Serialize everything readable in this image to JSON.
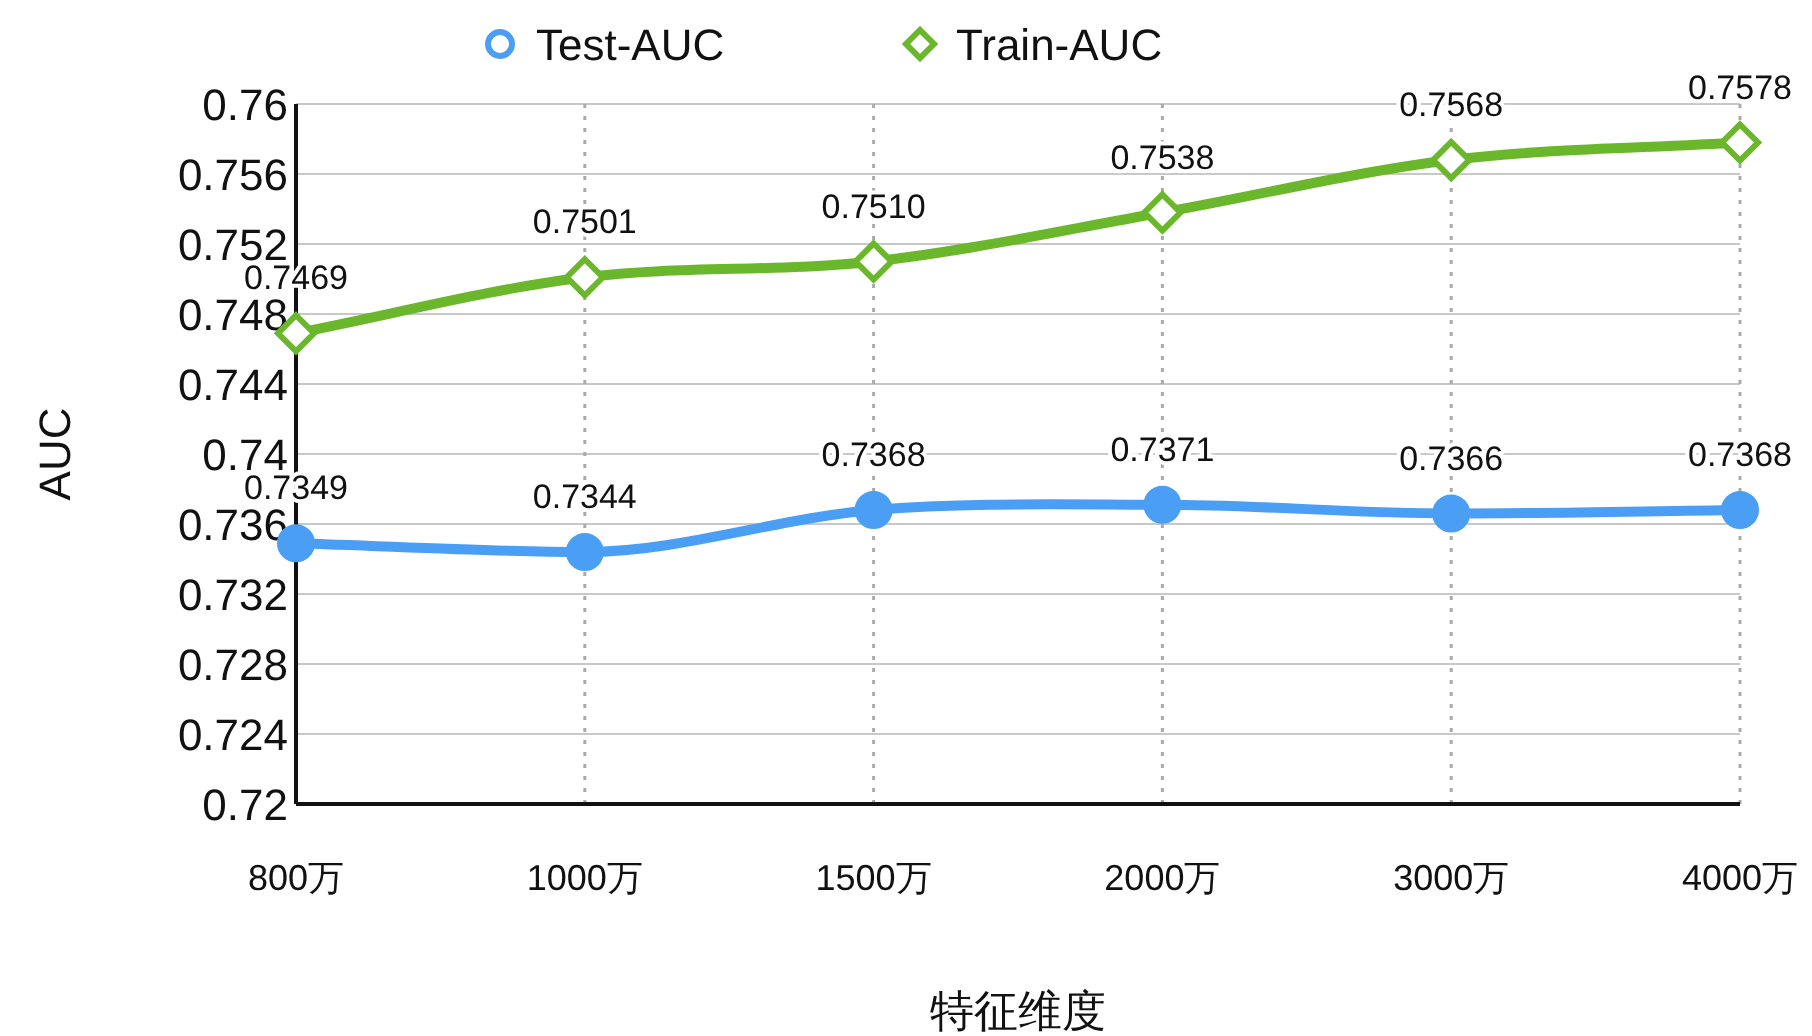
{
  "chart_data": {
    "type": "line",
    "xlabel": "特征维度",
    "ylabel": "AUC",
    "categories": [
      "800万",
      "1000万",
      "1500万",
      "2000万",
      "3000万",
      "4000万"
    ],
    "series": [
      {
        "name": "Test-AUC",
        "color": "#4a9ff5",
        "marker": "circle",
        "values": [
          0.7349,
          0.7344,
          0.7368,
          0.7371,
          0.7366,
          0.7368
        ],
        "value_labels": [
          "0.7349",
          "0.7344",
          "0.7368",
          "0.7371",
          "0.7366",
          "0.7368"
        ]
      },
      {
        "name": "Train-AUC",
        "color": "#6bb72c",
        "marker": "diamond",
        "values": [
          0.7469,
          0.7501,
          0.751,
          0.7538,
          0.7568,
          0.7578
        ],
        "value_labels": [
          "0.7469",
          "0.7501",
          "0.7510",
          "0.7538",
          "0.7568",
          "0.7578"
        ]
      }
    ],
    "ylim": [
      0.72,
      0.76
    ],
    "yticks": [
      0.72,
      0.724,
      0.728,
      0.732,
      0.736,
      0.74,
      0.744,
      0.748,
      0.752,
      0.756,
      0.76
    ],
    "grid": true,
    "legend": "top"
  }
}
